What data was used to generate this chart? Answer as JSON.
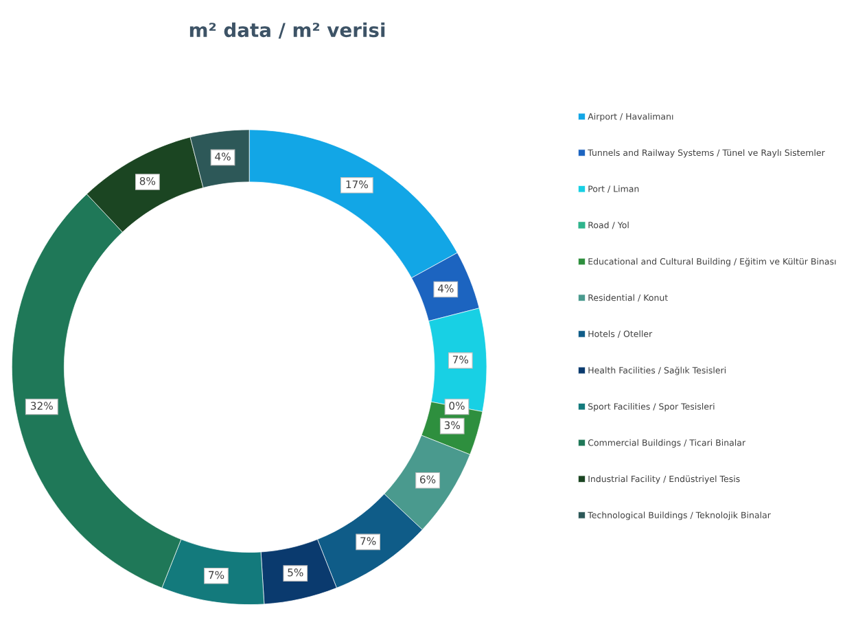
{
  "chart_data": {
    "type": "donut",
    "title": "m² data / m² verisi",
    "categories": [
      "Airport / Havalimanı",
      "Tunnels and Railway Systems / Tünel ve Raylı Sistemler",
      "Port / Liman",
      "Road / Yol",
      "Educational and Cultural Building / Eğitim ve Kültür Binası",
      "Residential / Konut",
      "Hotels / Oteller",
      "Health Facilities / Sağlık Tesisleri",
      "Sport Facilities / Spor Tesisleri",
      "Commercial Buildings / Ticari Binalar",
      "Industrial Facility / Endüstriyel Tesis",
      "Technological Buildings / Teknolojik Binalar"
    ],
    "values": [
      17,
      4,
      7,
      0,
      3,
      6,
      7,
      5,
      7,
      32,
      8,
      4
    ],
    "colors": [
      "#12a6e6",
      "#1c64c0",
      "#18d0e4",
      "#2fb48c",
      "#2e8f3e",
      "#4a9a8e",
      "#0f5c88",
      "#0a3a6e",
      "#137a7c",
      "#1f7858",
      "#1b4522",
      "#2d5858"
    ],
    "value_labels": [
      "17%",
      "4%",
      "7%",
      "0%",
      "3%",
      "6%",
      "7%",
      "5%",
      "7%",
      "32%",
      "8%",
      "4%"
    ],
    "legend": "right"
  }
}
